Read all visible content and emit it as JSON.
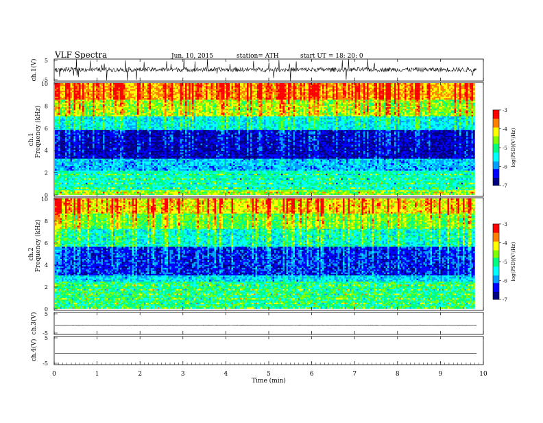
{
  "header": {
    "title": "VLF  Spectra",
    "date": "Jun. 10, 2015",
    "station": "station= ATH",
    "start": "start  UT  =    18: 20: 0"
  },
  "x_axis": {
    "label": "Time  (min)",
    "ticks": [
      "0",
      "1",
      "2",
      "3",
      "4",
      "5",
      "6",
      "7",
      "8",
      "9",
      "10"
    ]
  },
  "panels": {
    "ch1_wave": {
      "label": "ch.1(V)",
      "ticks": [
        "5",
        "-5"
      ]
    },
    "ch1_spec": {
      "label_channel": "ch.1",
      "label_quantity": "Frequency  (kHz)",
      "ticks": [
        "10",
        "8",
        "6",
        "4",
        "2",
        "0"
      ]
    },
    "ch2_spec": {
      "label_channel": "ch.2",
      "label_quantity": "Frequency  (kHz)",
      "ticks": [
        "10",
        "8",
        "6",
        "4",
        "2",
        "0"
      ]
    },
    "ch3_wave": {
      "label": "ch.3(V)",
      "ticks": [
        "5",
        "-5"
      ]
    },
    "ch4_wave": {
      "label": "ch.4(V)",
      "ticks": [
        "5",
        "-5"
      ]
    }
  },
  "colorbar": {
    "label": "log(PSD)(V²/Hz)",
    "ticks": [
      "-3",
      "-4",
      "-5",
      "-6",
      "-7"
    ],
    "colors": [
      "#000080",
      "#0000ff",
      "#00a0ff",
      "#00ffff",
      "#00ff80",
      "#80ff00",
      "#ffff00",
      "#ff8000",
      "#ff0000",
      "#ff8080",
      "#ffe0e0"
    ]
  },
  "chart_data": [
    {
      "type": "line",
      "name": "ch.1 waveform",
      "ylabel": "ch.1(V)",
      "xlabel": "Time  (min)",
      "xlim": [
        0,
        10
      ],
      "ylim": [
        -5,
        5
      ],
      "data_extent_x": [
        0,
        9.85
      ],
      "mean_level_v": 0.2,
      "typical_amplitude_v": 1.0,
      "max_excursion_v": 4.8
    },
    {
      "type": "heatmap",
      "name": "ch.1 spectrogram",
      "ylabel": "Frequency  (kHz)",
      "xlabel": "Time  (min)",
      "xlim": [
        0,
        10
      ],
      "ylim": [
        0,
        10
      ],
      "data_extent_x": [
        0,
        9.85
      ],
      "colorbar_range": [
        -7,
        -3
      ],
      "frequency_bands_khz": [
        {
          "from": 0,
          "to": 0.4,
          "log_psd": -4.5
        },
        {
          "from": 0.4,
          "to": 2.2,
          "log_psd": -5.2
        },
        {
          "from": 2.2,
          "to": 3.2,
          "log_psd": -5.8
        },
        {
          "from": 3.2,
          "to": 5.8,
          "log_psd": -6.7
        },
        {
          "from": 5.8,
          "to": 7.0,
          "log_psd": -5.6
        },
        {
          "from": 7.0,
          "to": 8.5,
          "log_psd": -4.6
        },
        {
          "from": 8.5,
          "to": 10,
          "log_psd": -3.9
        }
      ]
    },
    {
      "type": "heatmap",
      "name": "ch.2 spectrogram",
      "ylabel": "Frequency  (kHz)",
      "xlabel": "Time  (min)",
      "xlim": [
        0,
        10
      ],
      "ylim": [
        0,
        10
      ],
      "data_extent_x": [
        0,
        9.85
      ],
      "colorbar_range": [
        -7,
        -3
      ],
      "frequency_bands_khz": [
        {
          "from": 0,
          "to": 0.5,
          "log_psd": -5.0
        },
        {
          "from": 0.5,
          "to": 2.4,
          "log_psd": -5.0
        },
        {
          "from": 2.4,
          "to": 3.0,
          "log_psd": -5.7
        },
        {
          "from": 3.0,
          "to": 5.6,
          "log_psd": -6.4
        },
        {
          "from": 5.6,
          "to": 7.2,
          "log_psd": -5.4
        },
        {
          "from": 7.2,
          "to": 8.6,
          "log_psd": -4.8
        },
        {
          "from": 8.6,
          "to": 10,
          "log_psd": -4.2
        }
      ]
    },
    {
      "type": "line",
      "name": "ch.3 waveform",
      "ylabel": "ch.3(V)",
      "xlabel": "Time  (min)",
      "xlim": [
        0,
        10
      ],
      "ylim": [
        -5,
        5
      ],
      "data_extent_x": [
        0,
        9.85
      ],
      "mean_level_v": -0.8,
      "typical_amplitude_v": 0.1
    },
    {
      "type": "line",
      "name": "ch.4 waveform",
      "ylabel": "ch.4(V)",
      "xlabel": "Time  (min)",
      "xlim": [
        0,
        10
      ],
      "ylim": [
        -5,
        5
      ],
      "data_extent_x": [
        0,
        9.85
      ],
      "mean_level_v": -1.0,
      "typical_amplitude_v": 0.0
    }
  ]
}
